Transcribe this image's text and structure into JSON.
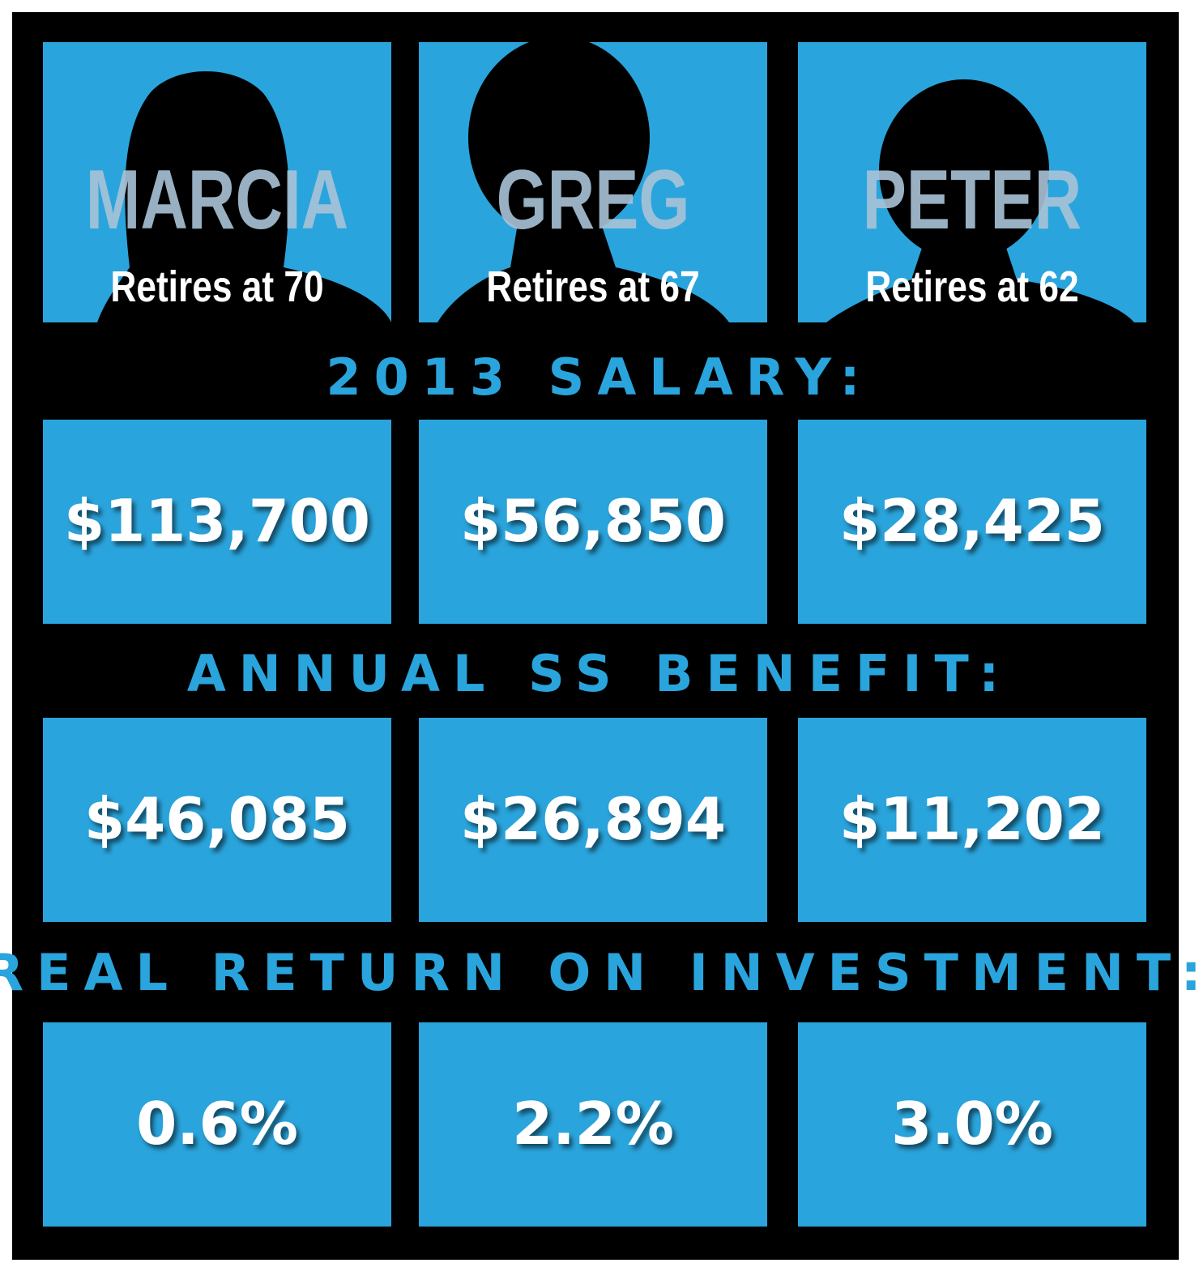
{
  "people": [
    {
      "name": "MARCIA",
      "subtitle": "Retires at 70"
    },
    {
      "name": "GREG",
      "subtitle": "Retires at 67"
    },
    {
      "name": "PETER",
      "subtitle": "Retires at 62"
    }
  ],
  "sections": [
    {
      "heading": "2013 SALARY:",
      "values": [
        "$113,700",
        "$56,850",
        "$28,425"
      ]
    },
    {
      "heading": "ANNUAL SS BENEFIT:",
      "values": [
        "$46,085",
        "$26,894",
        "$11,202"
      ]
    },
    {
      "heading": "REAL RETURN ON INVESTMENT:",
      "values": [
        "0.6%",
        "2.2%",
        "3.0%"
      ]
    }
  ]
}
